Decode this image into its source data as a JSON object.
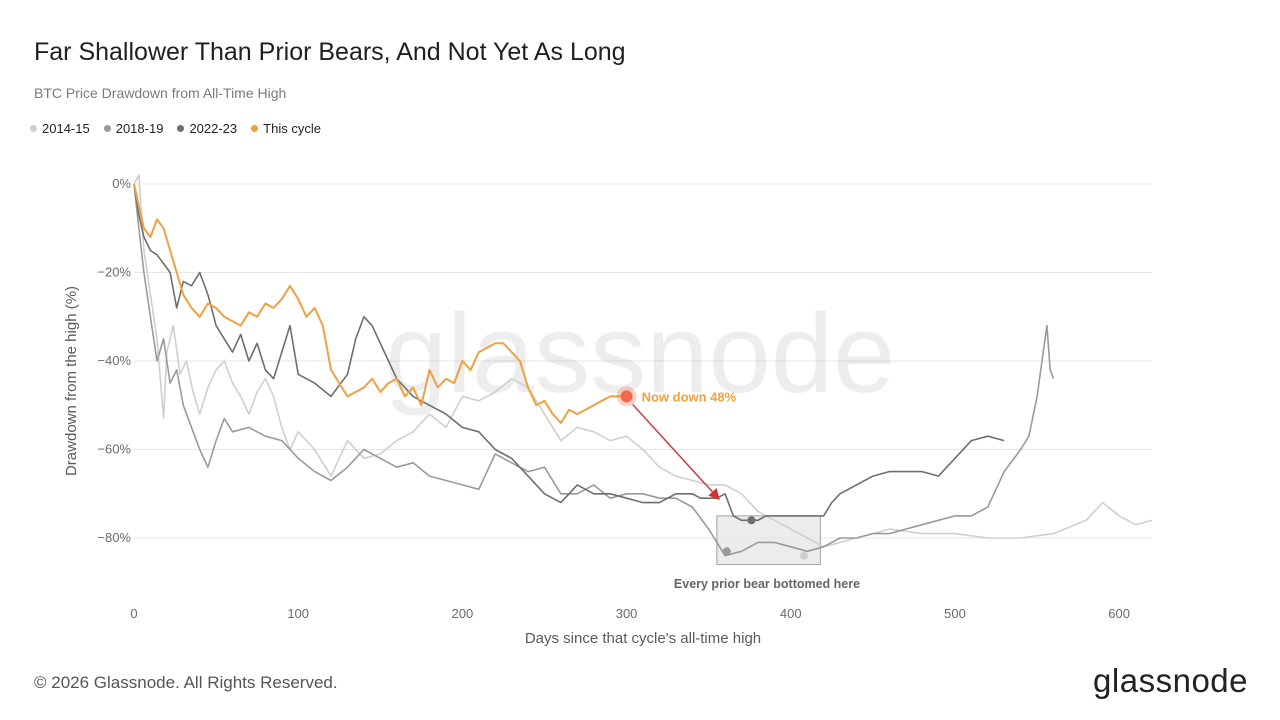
{
  "chart_data": {
    "type": "line",
    "title": "Far Shallower Than Prior Bears, And Not Yet As Long",
    "subtitle": "BTC Price Drawdown from All-Time High",
    "xlabel": "Days since that cycle's all-time high",
    "ylabel": "Drawdown from the high (%)",
    "xlim": [
      0,
      620
    ],
    "ylim": [
      -90,
      0
    ],
    "x_ticks": [
      0,
      100,
      200,
      300,
      400,
      500,
      600
    ],
    "x_tick_labels": [
      "0",
      "100",
      "200",
      "300",
      "400",
      "500",
      "600"
    ],
    "y_ticks": [
      0,
      -20,
      -40,
      -60,
      -80
    ],
    "y_tick_labels": [
      "0%",
      "−20%",
      "−40%",
      "−60%",
      "−80%"
    ],
    "grid": "horizontal",
    "legend_position": "top-left",
    "watermark": "glassnode",
    "series": [
      {
        "name": "2014-15",
        "color": "#cfcfcf",
        "x": [
          0,
          3,
          6,
          10,
          14,
          18,
          20,
          24,
          28,
          32,
          36,
          40,
          45,
          50,
          55,
          60,
          65,
          70,
          75,
          80,
          85,
          90,
          95,
          100,
          110,
          120,
          130,
          140,
          150,
          160,
          170,
          180,
          190,
          200,
          210,
          220,
          230,
          240,
          250,
          260,
          270,
          280,
          290,
          300,
          310,
          320,
          330,
          340,
          350,
          360,
          370,
          380,
          390,
          400,
          410,
          420,
          440,
          460,
          480,
          500,
          520,
          540,
          560,
          580,
          590,
          600,
          610,
          620
        ],
        "y": [
          0,
          2,
          -15,
          -25,
          -35,
          -53,
          -38,
          -32,
          -43,
          -40,
          -47,
          -52,
          -46,
          -42,
          -40,
          -45,
          -48,
          -52,
          -47,
          -44,
          -48,
          -55,
          -60,
          -56,
          -60,
          -66,
          -58,
          -62,
          -61,
          -58,
          -56,
          -52,
          -55,
          -48,
          -49,
          -47,
          -44,
          -46,
          -52,
          -58,
          -55,
          -56,
          -58,
          -57,
          -60,
          -64,
          -66,
          -67,
          -68,
          -68,
          -70,
          -74,
          -76,
          -78,
          -80,
          -82,
          -80,
          -78,
          -79,
          -79,
          -80,
          -80,
          -79,
          -76,
          -72,
          -75,
          -77,
          -76
        ]
      },
      {
        "name": "2018-19",
        "color": "#9a9a9a",
        "x": [
          0,
          3,
          6,
          10,
          14,
          18,
          22,
          26,
          30,
          35,
          40,
          45,
          50,
          55,
          60,
          70,
          80,
          90,
          100,
          110,
          120,
          130,
          140,
          150,
          160,
          170,
          180,
          190,
          200,
          210,
          220,
          230,
          240,
          250,
          260,
          270,
          280,
          290,
          300,
          310,
          320,
          330,
          340,
          350,
          355,
          360,
          370,
          380,
          390,
          400,
          410,
          420,
          430,
          440,
          450,
          460,
          470,
          480,
          490,
          500,
          510,
          520,
          530,
          540,
          545,
          550,
          553,
          556,
          558,
          560
        ],
        "y": [
          0,
          -10,
          -20,
          -30,
          -40,
          -35,
          -45,
          -42,
          -50,
          -55,
          -60,
          -64,
          -58,
          -53,
          -56,
          -55,
          -57,
          -58,
          -62,
          -65,
          -67,
          -64,
          -60,
          -62,
          -64,
          -63,
          -66,
          -67,
          -68,
          -69,
          -61,
          -63,
          -65,
          -64,
          -70,
          -70,
          -68,
          -71,
          -70,
          -70,
          -71,
          -71,
          -73,
          -78,
          -81,
          -84,
          -83,
          -81,
          -81,
          -82,
          -83,
          -82,
          -80,
          -80,
          -79,
          -79,
          -78,
          -77,
          -76,
          -75,
          -75,
          -73,
          -65,
          -60,
          -57,
          -48,
          -40,
          -32,
          -42,
          -44
        ]
      },
      {
        "name": "2022-23",
        "color": "#6e6e6e",
        "x": [
          0,
          3,
          6,
          10,
          14,
          18,
          22,
          26,
          30,
          35,
          40,
          45,
          50,
          55,
          60,
          65,
          70,
          75,
          80,
          85,
          90,
          95,
          100,
          110,
          120,
          130,
          135,
          140,
          145,
          150,
          155,
          160,
          170,
          180,
          190,
          200,
          210,
          220,
          230,
          240,
          250,
          260,
          270,
          280,
          290,
          300,
          310,
          320,
          330,
          340,
          345,
          350,
          355,
          360,
          365,
          370,
          375,
          380,
          385,
          390,
          395,
          400,
          410,
          420,
          425,
          430,
          440,
          450,
          460,
          470,
          480,
          490,
          500,
          510,
          520,
          530
        ],
        "y": [
          0,
          -7,
          -12,
          -15,
          -16,
          -18,
          -20,
          -28,
          -22,
          -23,
          -20,
          -25,
          -32,
          -35,
          -38,
          -34,
          -40,
          -36,
          -42,
          -44,
          -38,
          -32,
          -43,
          -45,
          -48,
          -43,
          -35,
          -30,
          -32,
          -36,
          -40,
          -44,
          -48,
          -50,
          -52,
          -55,
          -56,
          -60,
          -62,
          -66,
          -70,
          -72,
          -68,
          -70,
          -70,
          -71,
          -72,
          -72,
          -70,
          -70,
          -71,
          -71,
          -71,
          -70,
          -75,
          -76,
          -76,
          -76,
          -75,
          -75,
          -75,
          -75,
          -75,
          -75,
          -72,
          -70,
          -68,
          -66,
          -65,
          -65,
          -65,
          -66,
          -62,
          -58,
          -57,
          -58
        ]
      },
      {
        "name": "This cycle",
        "color": "#f0a040",
        "x": [
          0,
          3,
          6,
          10,
          14,
          18,
          22,
          26,
          30,
          35,
          40,
          45,
          50,
          55,
          60,
          65,
          70,
          75,
          80,
          85,
          90,
          95,
          100,
          105,
          110,
          115,
          120,
          125,
          130,
          135,
          140,
          145,
          150,
          155,
          160,
          165,
          170,
          175,
          180,
          185,
          190,
          195,
          200,
          205,
          210,
          215,
          220,
          225,
          230,
          235,
          240,
          245,
          250,
          255,
          260,
          265,
          270,
          275,
          280,
          285,
          290,
          295,
          300
        ],
        "y": [
          0,
          -5,
          -10,
          -12,
          -8,
          -10,
          -15,
          -20,
          -25,
          -28,
          -30,
          -27,
          -28,
          -30,
          -31,
          -32,
          -29,
          -30,
          -27,
          -28,
          -26,
          -23,
          -26,
          -30,
          -28,
          -32,
          -42,
          -45,
          -48,
          -47,
          -46,
          -44,
          -47,
          -45,
          -44,
          -48,
          -46,
          -50,
          -42,
          -46,
          -44,
          -45,
          -40,
          -42,
          -38,
          -37,
          -36,
          -36,
          -38,
          -40,
          -46,
          -50,
          -49,
          -52,
          -54,
          -51,
          -52,
          -51,
          -50,
          -49,
          -48,
          -48,
          -48
        ]
      }
    ],
    "annotations": {
      "now_label": "Now down 48%",
      "box_label": "Every prior bear bottomed here",
      "now_point": [
        300,
        -48
      ],
      "box_range_x": [
        355,
        418
      ],
      "box_range_y": [
        -86,
        -75
      ],
      "bottom_points": [
        {
          "series": "2018-19",
          "x": 361,
          "y": -83
        },
        {
          "series": "2022-23",
          "x": 376,
          "y": -76
        },
        {
          "series": "2014-15",
          "x": 408,
          "y": -84
        }
      ]
    }
  },
  "footer": {
    "copyright": "© 2026 Glassnode. All Rights Reserved.",
    "logo_text": "glassnode"
  },
  "colors": {
    "accent_orange": "#f0a040",
    "now_dot": "#f06a4a",
    "arrow": "#d0343a",
    "grid": "#e6e6e6",
    "axis_text": "#6a6a6a"
  }
}
